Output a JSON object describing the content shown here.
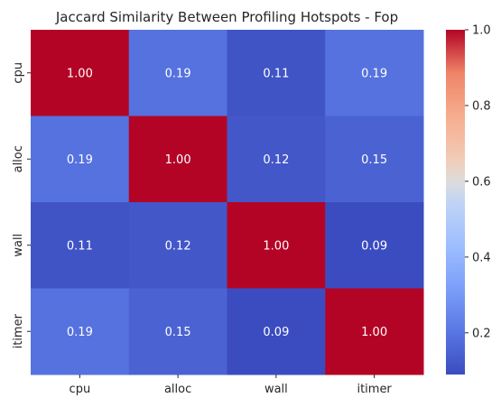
{
  "chart_data": {
    "type": "heatmap",
    "title": "Jaccard Similarity Between Profiling Hotspots - Fop",
    "xlabel": "",
    "ylabel": "",
    "x_categories": [
      "cpu",
      "alloc",
      "wall",
      "itimer"
    ],
    "y_categories": [
      "cpu",
      "alloc",
      "wall",
      "itimer"
    ],
    "values": [
      [
        1.0,
        0.19,
        0.11,
        0.19
      ],
      [
        0.19,
        1.0,
        0.12,
        0.15
      ],
      [
        0.11,
        0.12,
        1.0,
        0.09
      ],
      [
        0.19,
        0.15,
        0.09,
        1.0
      ]
    ],
    "value_labels": [
      [
        "1.00",
        "0.19",
        "0.11",
        "0.19"
      ],
      [
        "0.19",
        "1.00",
        "0.12",
        "0.15"
      ],
      [
        "0.11",
        "0.12",
        "1.00",
        "0.09"
      ],
      [
        "0.19",
        "0.15",
        "0.09",
        "1.00"
      ]
    ],
    "colormap": "coolwarm",
    "colorbar": {
      "range": [
        0.09,
        1.0
      ],
      "ticks": [
        0.2,
        0.4,
        0.6,
        0.8,
        1.0
      ],
      "tick_labels": [
        "0.2",
        "0.4",
        "0.6",
        "0.8",
        "1.0"
      ]
    },
    "grid": false
  }
}
